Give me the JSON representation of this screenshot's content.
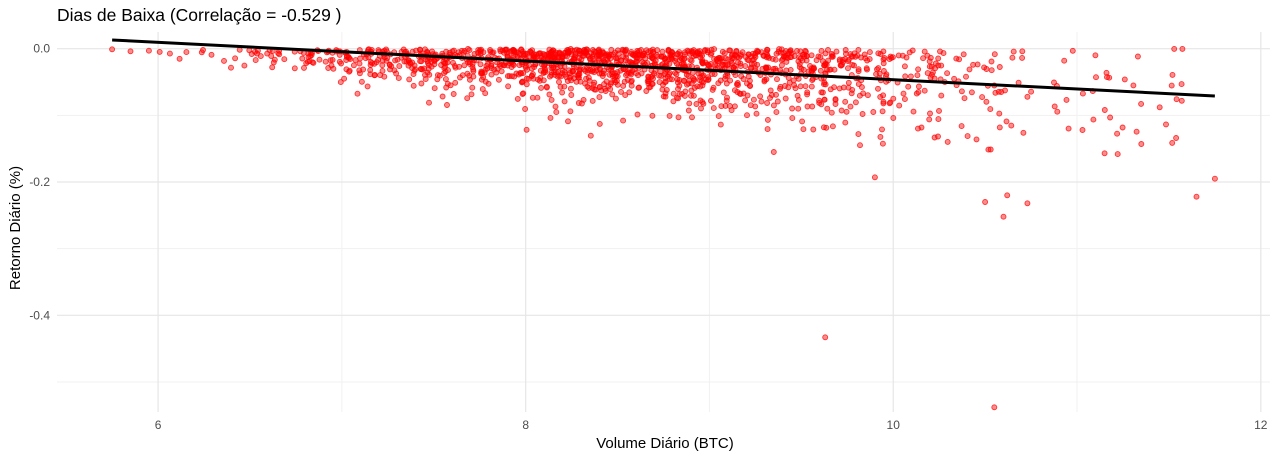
{
  "chart_data": {
    "type": "scatter",
    "title": "Dias de Baixa (Correlação = -0.529 )",
    "xlabel": "Volume Diário (BTC)",
    "ylabel": "Retorno Diário (%)",
    "xlim": [
      5.45,
      12.05
    ],
    "ylim": [
      -0.545,
      0.025
    ],
    "x_ticks": [
      6,
      8,
      10,
      12
    ],
    "y_ticks": [
      0.0,
      -0.2,
      -0.4
    ],
    "x_tick_labels": [
      "6",
      "8",
      "10",
      "12"
    ],
    "y_tick_labels": [
      "0.0",
      "-0.2",
      "-0.4"
    ],
    "grid": true,
    "point_color": "#ff0000",
    "trend_line": {
      "color": "#000000",
      "x": [
        5.75,
        11.75
      ],
      "y": [
        0.013,
        -0.071
      ]
    },
    "notable_points": [
      {
        "x": 9.63,
        "y": -0.433
      },
      {
        "x": 10.55,
        "y": -0.538
      },
      {
        "x": 9.9,
        "y": -0.193
      },
      {
        "x": 10.5,
        "y": -0.23
      },
      {
        "x": 10.6,
        "y": -0.252
      },
      {
        "x": 10.62,
        "y": -0.22
      },
      {
        "x": 10.73,
        "y": -0.232
      },
      {
        "x": 11.65,
        "y": -0.222
      },
      {
        "x": 11.75,
        "y": -0.195
      },
      {
        "x": 11.15,
        "y": -0.157
      },
      {
        "x": 11.35,
        "y": -0.143
      },
      {
        "x": 9.35,
        "y": -0.155
      },
      {
        "x": 11.45,
        "y": -0.088
      },
      {
        "x": 11.1,
        "y": -0.01
      },
      {
        "x": 10.93,
        "y": -0.018
      },
      {
        "x": 11.03,
        "y": -0.122
      },
      {
        "x": 5.75,
        "y": -0.001
      },
      {
        "x": 5.85,
        "y": -0.004
      },
      {
        "x": 5.95,
        "y": -0.003
      }
    ]
  }
}
